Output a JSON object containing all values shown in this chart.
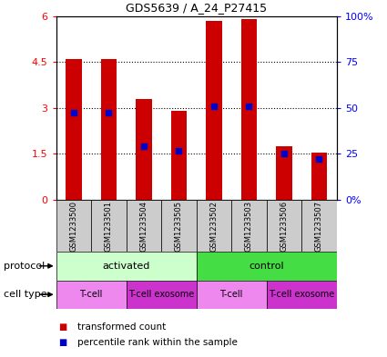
{
  "title": "GDS5639 / A_24_P27415",
  "samples": [
    "GSM1233500",
    "GSM1233501",
    "GSM1233504",
    "GSM1233505",
    "GSM1233502",
    "GSM1233503",
    "GSM1233506",
    "GSM1233507"
  ],
  "red_values": [
    4.6,
    4.6,
    3.3,
    2.9,
    5.85,
    5.9,
    1.75,
    1.55
  ],
  "blue_values": [
    2.85,
    2.85,
    1.75,
    1.6,
    3.05,
    3.05,
    1.5,
    1.35
  ],
  "ylim": [
    0,
    6
  ],
  "yticks": [
    0,
    1.5,
    3.0,
    4.5,
    6
  ],
  "ytick_labels": [
    "0",
    "1.5",
    "3",
    "4.5",
    "6"
  ],
  "right_ytick_labels": [
    "0%",
    "25",
    "50",
    "75",
    "100%"
  ],
  "protocol_labels": [
    "activated",
    "control"
  ],
  "protocol_ranges": [
    [
      0,
      4
    ],
    [
      4,
      8
    ]
  ],
  "protocol_color_activated": "#ccffcc",
  "protocol_color_control": "#44dd44",
  "cell_type_labels": [
    "T-cell",
    "T-cell exosome",
    "T-cell",
    "T-cell exosome"
  ],
  "cell_type_ranges": [
    [
      0,
      2
    ],
    [
      2,
      4
    ],
    [
      4,
      6
    ],
    [
      6,
      8
    ]
  ],
  "cell_type_color_light": "#ee88ee",
  "cell_type_color_dark": "#cc33cc",
  "legend_red": "transformed count",
  "legend_blue": "percentile rank within the sample",
  "bar_color": "#cc0000",
  "dot_color": "#0000cc",
  "sample_bg_color": "#cccccc"
}
